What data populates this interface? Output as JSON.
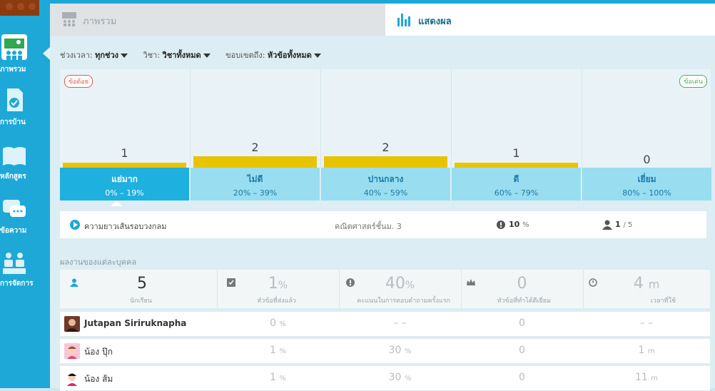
{
  "sidebar": {
    "items": [
      {
        "label": "ภาพรวม",
        "icon": "class-overview-icon",
        "active": true
      },
      {
        "label": "การบ้าน",
        "icon": "homework-icon"
      },
      {
        "label": "หลักสูตร",
        "icon": "curriculum-icon"
      },
      {
        "label": "ข้อความ",
        "icon": "messages-icon"
      },
      {
        "label": "การจัดการ",
        "icon": "management-icon"
      }
    ]
  },
  "tabs": {
    "overview": "ภาพรวม",
    "results": "แสดงผล"
  },
  "filters": {
    "period_label": "ช่วงเวลา:",
    "period_value": "ทุกช่วง",
    "subject_label": "วิชา:",
    "subject_value": "วิชาทั้งหมด",
    "scope_label": "ขอบเขตถึง:",
    "scope_value": "หัวข้อทั้งหมด"
  },
  "distribution": {
    "weak_tag": "ข้อด้อย",
    "strong_tag": "ข้อเด่น",
    "bands": [
      {
        "name": "แย่มาก",
        "range": "0% – 19%",
        "count": 1
      },
      {
        "name": "ไม่ดี",
        "range": "20% – 39%",
        "count": 2
      },
      {
        "name": "ปานกลาง",
        "range": "40% – 59%",
        "count": 2
      },
      {
        "name": "ดี",
        "range": "60% – 79%",
        "count": 1
      },
      {
        "name": "เยี่ยม",
        "range": "80% – 100%",
        "count": 0
      }
    ]
  },
  "question": {
    "title": "ความยาวเส้นรอบวงกลม",
    "subject": "คณิตศาสตร์ชั้นม. 3",
    "percent": "10",
    "percent_unit": "%",
    "students": "1",
    "students_total": "/ 5"
  },
  "section_title": "ผลงานของแต่ละบุคคล",
  "stats": {
    "students": {
      "value": "5",
      "label": "นักเรียน"
    },
    "submitted": {
      "value": "1",
      "unit": "%",
      "label": "หัวข้อที่ส่งแล้ว"
    },
    "first_score": {
      "value": "40",
      "unit": "%",
      "label": "คะแนนในการตอบคำถามครั้งแรก"
    },
    "excellent": {
      "value": "0",
      "label": "หัวข้อที่ทำได้ดีเยี่ยม"
    },
    "time": {
      "value": "4",
      "unit": "m",
      "label": "เวลาที่ใช้"
    }
  },
  "rows": [
    {
      "name": "Jutapan Siriruknapha",
      "submitted": "0",
      "submitted_unit": "%",
      "score": "– –",
      "score_unit": "",
      "excellent": "0",
      "time": "– –",
      "time_unit": ""
    },
    {
      "name": "น้อง ปุ๊ก",
      "submitted": "1",
      "submitted_unit": "%",
      "score": "30",
      "score_unit": "%",
      "excellent": "0",
      "time": "1",
      "time_unit": "m"
    },
    {
      "name": "น้อง ส้ม",
      "submitted": "1",
      "submitted_unit": "%",
      "score": "30",
      "score_unit": "%",
      "excellent": "0",
      "time": "11",
      "time_unit": "m"
    }
  ],
  "colors": {
    "accent": "#1da8d8",
    "bar": "#e8c400",
    "band": "#98def0",
    "band_selected": "#1eb0de"
  }
}
